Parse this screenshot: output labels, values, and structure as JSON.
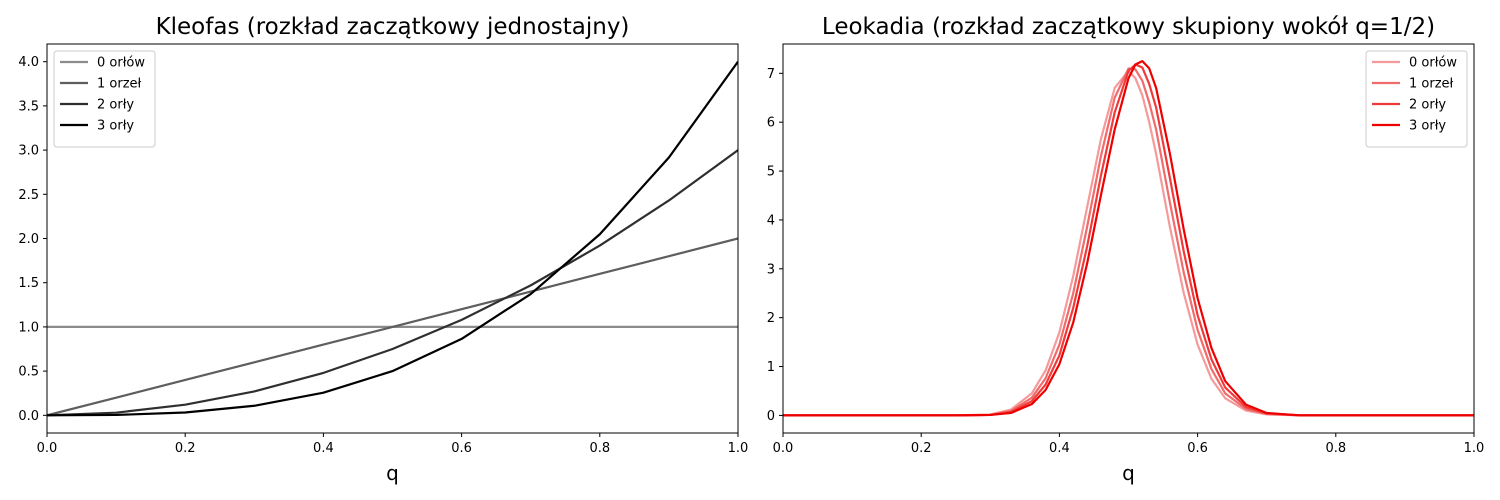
{
  "chart_data": [
    {
      "type": "line",
      "title": "Kleofas (rozkład zaczątkowy jednostajny)",
      "xlabel": "q",
      "ylabel": "",
      "xlim": [
        0,
        1
      ],
      "ylim": [
        -0.2,
        4.2
      ],
      "x_ticks": [
        "0.0",
        "0.2",
        "0.4",
        "0.6",
        "0.8",
        "1.0"
      ],
      "y_ticks": [
        "0.0",
        "0.5",
        "1.0",
        "1.5",
        "2.0",
        "2.5",
        "3.0",
        "3.5",
        "4.0"
      ],
      "grid": false,
      "legend_position": "top-left",
      "x": [
        0.0,
        0.1,
        0.2,
        0.3,
        0.4,
        0.5,
        0.6,
        0.7,
        0.8,
        0.9,
        1.0
      ],
      "series": [
        {
          "name": "0 orłów",
          "color": "#8c8c8c",
          "values": [
            1.0,
            1.0,
            1.0,
            1.0,
            1.0,
            1.0,
            1.0,
            1.0,
            1.0,
            1.0,
            1.0
          ]
        },
        {
          "name": "1 orzeł",
          "color": "#5e5e5e",
          "values": [
            0.0,
            0.2,
            0.4,
            0.6,
            0.8,
            1.0,
            1.2,
            1.4,
            1.6,
            1.8,
            2.0
          ]
        },
        {
          "name": "2 orły",
          "color": "#2f2f2f",
          "values": [
            0.0,
            0.03,
            0.12,
            0.27,
            0.48,
            0.75,
            1.08,
            1.47,
            1.92,
            2.43,
            3.0
          ]
        },
        {
          "name": "3 orły",
          "color": "#000000",
          "values": [
            0.0,
            0.004,
            0.032,
            0.108,
            0.256,
            0.5,
            0.864,
            1.372,
            2.048,
            2.916,
            4.0
          ]
        }
      ]
    },
    {
      "type": "line",
      "title": "Leokadia (rozkład zaczątkowy skupiony wokół q=1/2)",
      "xlabel": "q",
      "ylabel": "",
      "xlim": [
        0,
        1
      ],
      "ylim": [
        -0.36,
        7.6
      ],
      "x_ticks": [
        "0.0",
        "0.2",
        "0.4",
        "0.6",
        "0.8",
        "1.0"
      ],
      "y_ticks": [
        "0",
        "1",
        "2",
        "3",
        "4",
        "5",
        "6",
        "7"
      ],
      "grid": false,
      "legend_position": "top-right",
      "x": [
        0.0,
        0.25,
        0.3,
        0.33,
        0.36,
        0.38,
        0.4,
        0.42,
        0.44,
        0.46,
        0.48,
        0.5,
        0.51,
        0.52,
        0.53,
        0.54,
        0.56,
        0.58,
        0.6,
        0.62,
        0.64,
        0.67,
        0.7,
        0.75,
        1.0
      ],
      "series": [
        {
          "name": "0 orłów",
          "color": "#f59a9a",
          "values": [
            0,
            0,
            0.02,
            0.12,
            0.45,
            0.92,
            1.7,
            2.85,
            4.25,
            5.65,
            6.7,
            7.05,
            6.9,
            6.55,
            6.0,
            5.35,
            3.85,
            2.5,
            1.45,
            0.75,
            0.35,
            0.1,
            0.02,
            0,
            0
          ]
        },
        {
          "name": "1 orzeł",
          "color": "#f06b6b",
          "values": [
            0,
            0,
            0.01,
            0.09,
            0.36,
            0.76,
            1.45,
            2.5,
            3.85,
            5.3,
            6.5,
            7.1,
            7.08,
            6.85,
            6.4,
            5.85,
            4.35,
            2.92,
            1.75,
            0.95,
            0.45,
            0.13,
            0.03,
            0,
            0
          ]
        },
        {
          "name": "2 orły",
          "color": "#f03a3a",
          "values": [
            0,
            0,
            0.01,
            0.07,
            0.29,
            0.63,
            1.23,
            2.2,
            3.45,
            4.9,
            6.2,
            7.05,
            7.18,
            7.12,
            6.78,
            6.3,
            4.85,
            3.35,
            2.05,
            1.15,
            0.57,
            0.17,
            0.04,
            0,
            0
          ]
        },
        {
          "name": "3 orły",
          "color": "#ee0000",
          "values": [
            0,
            0,
            0.01,
            0.05,
            0.23,
            0.52,
            1.05,
            1.9,
            3.1,
            4.5,
            5.85,
            6.9,
            7.18,
            7.25,
            7.1,
            6.7,
            5.35,
            3.8,
            2.4,
            1.38,
            0.7,
            0.22,
            0.05,
            0,
            0
          ]
        }
      ]
    }
  ]
}
